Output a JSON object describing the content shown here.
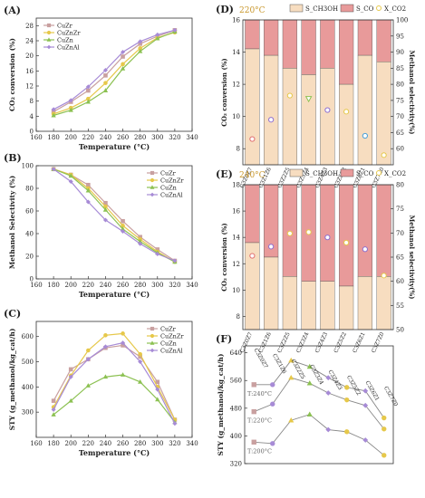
{
  "chart_data": [
    {
      "panel": "(A)",
      "type": "line",
      "x": [
        180,
        200,
        220,
        240,
        260,
        280,
        300,
        320
      ],
      "xlabel": "Temperature (°C)",
      "ylabel": "CO₂ conversion (%)",
      "xlim": [
        160,
        340
      ],
      "ylim": [
        0,
        30
      ],
      "xticks": [
        160,
        180,
        200,
        220,
        240,
        260,
        280,
        300,
        320,
        340
      ],
      "yticks": [
        0,
        4,
        8,
        12,
        16,
        20,
        24,
        28
      ],
      "legend": "top-left",
      "series": [
        {
          "name": "CuZr",
          "color": "#c9a0a0",
          "values": [
            5.2,
            7.8,
            10.8,
            14.8,
            19.8,
            23.2,
            25.2,
            26.8
          ]
        },
        {
          "name": "CuZnZr",
          "color": "#e6c84a",
          "values": [
            4.6,
            6.2,
            8.6,
            12.8,
            17.8,
            22.0,
            24.8,
            26.2
          ]
        },
        {
          "name": "CuZn",
          "color": "#8cc152",
          "values": [
            4.2,
            5.6,
            7.8,
            10.8,
            16.6,
            21.2,
            24.6,
            26.4
          ]
        },
        {
          "name": "CuZnAl",
          "color": "#a78bd6",
          "values": [
            5.8,
            8.2,
            11.8,
            16.2,
            21.0,
            23.8,
            25.6,
            26.8
          ]
        }
      ]
    },
    {
      "panel": "(B)",
      "type": "line",
      "x": [
        180,
        200,
        220,
        240,
        260,
        280,
        300,
        320
      ],
      "xlabel": "Temperature (°C)",
      "ylabel": "Methanol Selectivity (%)",
      "xlim": [
        160,
        340
      ],
      "ylim": [
        0,
        100
      ],
      "xticks": [
        160,
        180,
        200,
        220,
        240,
        260,
        280,
        300,
        320,
        340
      ],
      "yticks": [
        0,
        20,
        40,
        60,
        80,
        100
      ],
      "legend": "top-right",
      "series": [
        {
          "name": "CuZr",
          "color": "#c9a0a0",
          "values": [
            97,
            92,
            83,
            67,
            51,
            37,
            26,
            16
          ]
        },
        {
          "name": "CuZnZr",
          "color": "#e6c84a",
          "values": [
            97,
            92,
            80,
            64,
            47,
            35,
            24,
            15
          ]
        },
        {
          "name": "CuZn",
          "color": "#8cc152",
          "values": [
            97,
            91,
            78,
            61,
            44,
            33,
            23,
            15
          ]
        },
        {
          "name": "CuZnAl",
          "color": "#a78bd6",
          "values": [
            97,
            86,
            68,
            52,
            42,
            31,
            22,
            16
          ]
        }
      ]
    },
    {
      "panel": "(C)",
      "type": "line",
      "x": [
        180,
        200,
        220,
        240,
        260,
        280,
        300,
        320
      ],
      "xlabel": "Temperature (°C)",
      "ylabel": "STY (g_methanol/kg_cat/h)",
      "xlim": [
        160,
        340
      ],
      "ylim": [
        200,
        660
      ],
      "xticks": [
        160,
        180,
        200,
        220,
        240,
        260,
        280,
        300,
        320,
        340
      ],
      "yticks": [
        300,
        400,
        500,
        600
      ],
      "legend": "top-right",
      "series": [
        {
          "name": "CuZr",
          "color": "#c9a0a0",
          "values": [
            345,
            470,
            510,
            555,
            565,
            520,
            420,
            270
          ]
        },
        {
          "name": "CuZnZr",
          "color": "#e6c84a",
          "values": [
            320,
            445,
            545,
            605,
            612,
            530,
            400,
            270
          ]
        },
        {
          "name": "CuZn",
          "color": "#8cc152",
          "values": [
            290,
            345,
            405,
            440,
            448,
            420,
            350,
            260
          ]
        },
        {
          "name": "CuZnAl",
          "color": "#a78bd6",
          "values": [
            310,
            440,
            510,
            560,
            575,
            500,
            390,
            255
          ]
        }
      ]
    },
    {
      "panel": "(D)",
      "type": "bar",
      "temperature_label": "220°C",
      "categories": [
        "C3Z0Z7",
        "C3Z1Z6",
        "C3Z2Z5",
        "C3Z3Z4",
        "C3Z4Z3",
        "C3Z5Z2",
        "C3Z6Z1",
        "C3Z7Z0"
      ],
      "xlabel": "",
      "ylabel": "CO₂ conversion (%)",
      "ylabel_right": "Methanol selectivity(%)",
      "ylim": [
        7,
        16
      ],
      "ylim_right": [
        55,
        100
      ],
      "yticks": [
        8,
        10,
        12,
        14,
        16
      ],
      "yticks_right": [
        60,
        65,
        70,
        75,
        80,
        85,
        90,
        95,
        100
      ],
      "legend": [
        "S_CH3OH",
        "S_CO",
        "X_CO2"
      ],
      "legend_colors": {
        "S_CH3OH": "#f7ddc0",
        "S_CO": "#e89a9a"
      },
      "s_ch3oh": [
        91,
        89,
        85,
        83,
        85,
        80,
        89,
        87
      ],
      "x_co2": [
        8.6,
        9.8,
        11.3,
        11.1,
        10.4,
        10.3,
        8.8,
        7.6
      ],
      "marker_colors": [
        "#e07070",
        "#8e6fd0",
        "#e6c84a",
        "#8cc152",
        "#8e6fd0",
        "#e6c84a",
        "#4aa0d8",
        "#e6c84a"
      ]
    },
    {
      "panel": "(E)",
      "type": "bar",
      "temperature_label": "240°C",
      "categories": [
        "C3Z0Z7",
        "C3Z1Z6",
        "C3Z2Z5",
        "C3Z3Z4",
        "C3Z4Z3",
        "C3Z5Z2",
        "C3Z6Z1",
        "C3Z7Z0"
      ],
      "xlabel": "",
      "ylabel": "CO₂ conversion (%)",
      "ylabel_right": "Methanol selectivity(%)",
      "ylim": [
        7,
        18
      ],
      "ylim_right": [
        50,
        80
      ],
      "yticks": [
        8,
        10,
        12,
        14,
        16,
        18
      ],
      "yticks_right": [
        50,
        55,
        60,
        65,
        70,
        75,
        80
      ],
      "legend": [
        "S_CH3OH",
        "S_CO",
        "X_CO2"
      ],
      "legend_colors": {
        "S_CH3OH": "#f7ddc0",
        "S_CO": "#e89a9a"
      },
      "s_ch3oh": [
        68,
        65,
        61,
        60,
        60,
        59,
        61,
        61
      ],
      "x_co2": [
        12.6,
        13.3,
        14.3,
        14.4,
        14.0,
        13.6,
        13.1,
        11.1
      ],
      "marker_colors": [
        "#e07070",
        "#8e6fd0",
        "#e6c84a",
        "#e6c84a",
        "#8e6fd0",
        "#e6c84a",
        "#8e6fd0",
        "#e6c84a"
      ]
    },
    {
      "panel": "(F)",
      "type": "line",
      "categories": [
        "C3Z0Z7",
        "C3Z1Z6",
        "C3Z2Z5",
        "C3Z3Z4",
        "C3Z4Z3",
        "C3Z5Z2",
        "C3Z6Z1",
        "C3Z7Z0"
      ],
      "xlabel": "",
      "ylabel": "STY (g_methanol/kg_cat/h)",
      "ylim": [
        320,
        660
      ],
      "yticks": [
        320,
        400,
        480,
        560,
        640
      ],
      "series": [
        {
          "name": "T:240°C",
          "values": [
            548,
            548,
            618,
            600,
            568,
            540,
            530,
            452
          ]
        },
        {
          "name": "T:220°C",
          "values": [
            470,
            492,
            568,
            552,
            524,
            504,
            488,
            420
          ]
        },
        {
          "name": "T:200°C",
          "values": [
            382,
            378,
            445,
            462,
            418,
            412,
            388,
            344
          ]
        }
      ],
      "marker_colors": [
        "#c9a0a0",
        "#a78bd6",
        "#e6c84a",
        "#8cc152",
        "#a78bd6",
        "#e6c84a",
        "#a78bd6",
        "#e6c84a"
      ]
    }
  ]
}
